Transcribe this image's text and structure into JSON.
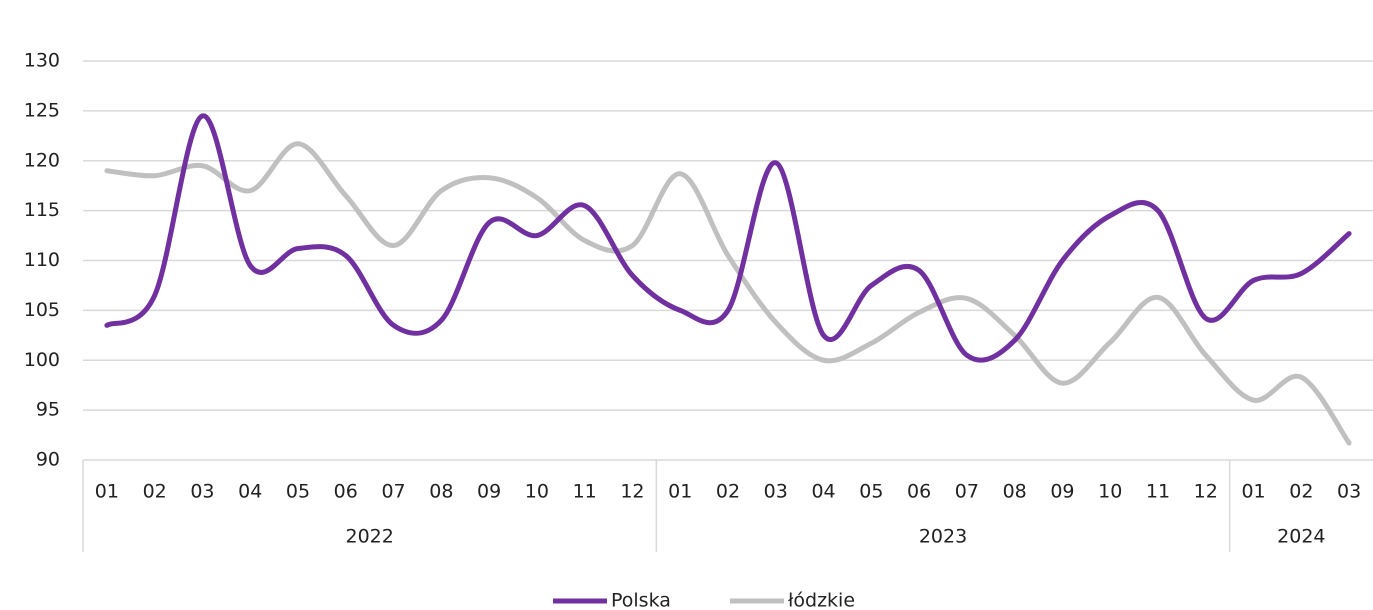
{
  "chart_data": {
    "type": "line",
    "categories": [
      "01",
      "02",
      "03",
      "04",
      "05",
      "06",
      "07",
      "08",
      "09",
      "10",
      "11",
      "12",
      "01",
      "02",
      "03",
      "04",
      "05",
      "06",
      "07",
      "08",
      "09",
      "10",
      "11",
      "12",
      "01",
      "02",
      "03"
    ],
    "groups": [
      {
        "label": "2022",
        "count": 12
      },
      {
        "label": "2023",
        "count": 12
      },
      {
        "label": "2024",
        "count": 3
      }
    ],
    "series": [
      {
        "name": "Polska",
        "color": "#7030a0",
        "values": [
          103.5,
          106.5,
          124.5,
          109.5,
          111.2,
          110.5,
          103.5,
          104,
          113.8,
          112.5,
          115.5,
          108.5,
          105,
          105,
          119.8,
          102.5,
          107.5,
          109,
          100.5,
          102,
          110,
          114.5,
          115,
          104.2,
          108,
          108.7,
          112.7
        ]
      },
      {
        "name": "łódzkie",
        "color": "#c0c0c0",
        "values": [
          119,
          118.5,
          119.5,
          117,
          121.7,
          116.5,
          111.5,
          117,
          118.3,
          116.3,
          112,
          111.5,
          118.7,
          110.5,
          103.8,
          100,
          101.7,
          104.8,
          106.2,
          102.5,
          97.7,
          101.8,
          106.3,
          100.5,
          96,
          98.3,
          91.7
        ]
      }
    ],
    "ylim": [
      90,
      130
    ],
    "yticks": [
      90,
      95,
      100,
      105,
      110,
      115,
      120,
      125,
      130
    ],
    "grid": true,
    "legend": "bottom"
  }
}
